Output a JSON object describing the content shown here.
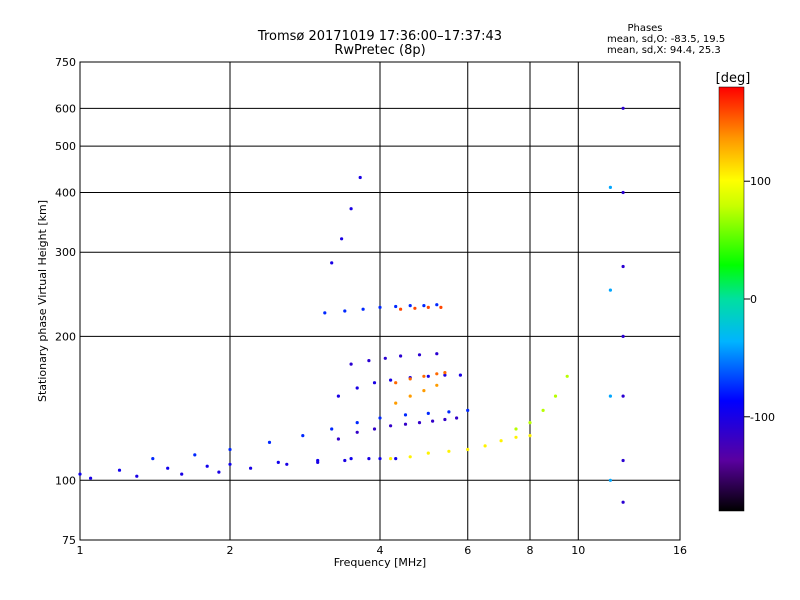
{
  "chart_data": {
    "type": "scatter",
    "title": "Tromsø 20171019 17:36:00–17:37:43",
    "subtitle": "RwPretec (8p)",
    "xlabel": "Frequency [MHz]",
    "ylabel": "Stationary phase Virtual Height [km]",
    "x_scale": "log",
    "y_scale": "log",
    "xlim": [
      1,
      16
    ],
    "ylim": [
      75,
      750
    ],
    "x_ticks": [
      1,
      2,
      4,
      6,
      8,
      10,
      16
    ],
    "y_ticks": [
      75,
      100,
      200,
      300,
      400,
      500,
      600,
      750
    ],
    "x_tick_labels": [
      "1",
      "2",
      "4",
      "6",
      "8",
      "10",
      "16"
    ],
    "y_tick_labels": [
      "75",
      "100",
      "200",
      "300",
      "400",
      "500",
      "600",
      "750"
    ],
    "grid": true,
    "stats": {
      "header": "Phases",
      "line_o": "mean, sd,O: -83.5, 19.5",
      "line_x": "mean, sd,X:  94.4, 25.3"
    },
    "colorbar": {
      "label": "[deg]",
      "range": [
        -180,
        180
      ],
      "ticks": [
        100,
        0,
        -100
      ],
      "tick_labels": [
        "100",
        "0",
        "-100"
      ]
    },
    "traces": [
      {
        "name": "o-low",
        "x": [
          1.0,
          1.2,
          1.5,
          1.8,
          2.0,
          2.5,
          3.0,
          3.5,
          4.0,
          4.3
        ],
        "y": [
          103,
          105,
          106,
          107,
          108,
          109,
          110,
          111,
          111,
          111
        ],
        "phase": -95
      },
      {
        "name": "o-lower",
        "x": [
          1.05,
          1.3,
          1.6,
          1.9,
          2.2,
          2.6,
          3.0,
          3.4,
          3.8
        ],
        "y": [
          101,
          102,
          103,
          104,
          106,
          108,
          109,
          110,
          111
        ],
        "phase": -100
      },
      {
        "name": "o-mid",
        "x": [
          1.4,
          1.7,
          2.0,
          2.4,
          2.8,
          3.2,
          3.6,
          4.0,
          4.5,
          5.0,
          5.5,
          6.0
        ],
        "y": [
          111,
          113,
          116,
          120,
          124,
          128,
          132,
          135,
          137,
          138,
          139,
          140
        ],
        "phase": -75
      },
      {
        "name": "o-stacked",
        "x": [
          3.3,
          3.6,
          3.9,
          4.2,
          4.5,
          4.8,
          5.1,
          5.4,
          5.7
        ],
        "y": [
          122,
          126,
          128,
          130,
          131,
          132,
          133,
          134,
          135
        ],
        "phase": -115
      },
      {
        "name": "o-band-160",
        "x": [
          3.3,
          3.6,
          3.9,
          4.2,
          4.6,
          5.0,
          5.4,
          5.8
        ],
        "y": [
          150,
          156,
          160,
          162,
          164,
          165,
          166,
          166
        ],
        "phase": -100
      },
      {
        "name": "o-band-180",
        "x": [
          3.5,
          3.8,
          4.1,
          4.4,
          4.8,
          5.2
        ],
        "y": [
          175,
          178,
          180,
          182,
          183,
          184
        ],
        "phase": -110
      },
      {
        "name": "o-band-225",
        "x": [
          3.1,
          3.4,
          3.7,
          4.0,
          4.3,
          4.6,
          4.9,
          5.2
        ],
        "y": [
          224,
          226,
          228,
          230,
          231,
          232,
          232,
          233
        ],
        "phase": -75
      },
      {
        "name": "f-high",
        "x": [
          3.2,
          3.35,
          3.5,
          3.65
        ],
        "y": [
          285,
          320,
          370,
          430
        ],
        "phase": -100
      },
      {
        "name": "x-low",
        "x": [
          4.2,
          4.6,
          5.0,
          5.5,
          6.0,
          6.5,
          7.0,
          7.5,
          8.0
        ],
        "y": [
          111,
          112,
          114,
          115,
          116,
          118,
          121,
          123,
          124
        ],
        "phase": 105
      },
      {
        "name": "x-mid",
        "x": [
          4.3,
          4.6,
          4.9,
          5.2
        ],
        "y": [
          145,
          150,
          154,
          158
        ],
        "phase": 135
      },
      {
        "name": "x-upper",
        "x": [
          4.3,
          4.6,
          4.9,
          5.2,
          5.4
        ],
        "y": [
          160,
          163,
          165,
          167,
          168
        ],
        "phase": 150
      },
      {
        "name": "x-top",
        "x": [
          4.4,
          4.7,
          5.0,
          5.3
        ],
        "y": [
          228,
          229,
          230,
          230
        ],
        "phase": 160
      },
      {
        "name": "x-right",
        "x": [
          7.5,
          8.0,
          8.5,
          9.0,
          9.5
        ],
        "y": [
          128,
          132,
          140,
          150,
          165
        ],
        "phase": 75
      },
      {
        "name": "vertical-12",
        "x": [
          12.3,
          12.3,
          12.3,
          12.3,
          12.3,
          12.3,
          12.3
        ],
        "y": [
          90,
          110,
          150,
          200,
          280,
          400,
          600
        ],
        "phase": -110
      },
      {
        "name": "vertical-11",
        "x": [
          11.6,
          11.6,
          11.6,
          11.6
        ],
        "y": [
          100,
          150,
          250,
          410
        ],
        "phase": -40
      }
    ]
  }
}
